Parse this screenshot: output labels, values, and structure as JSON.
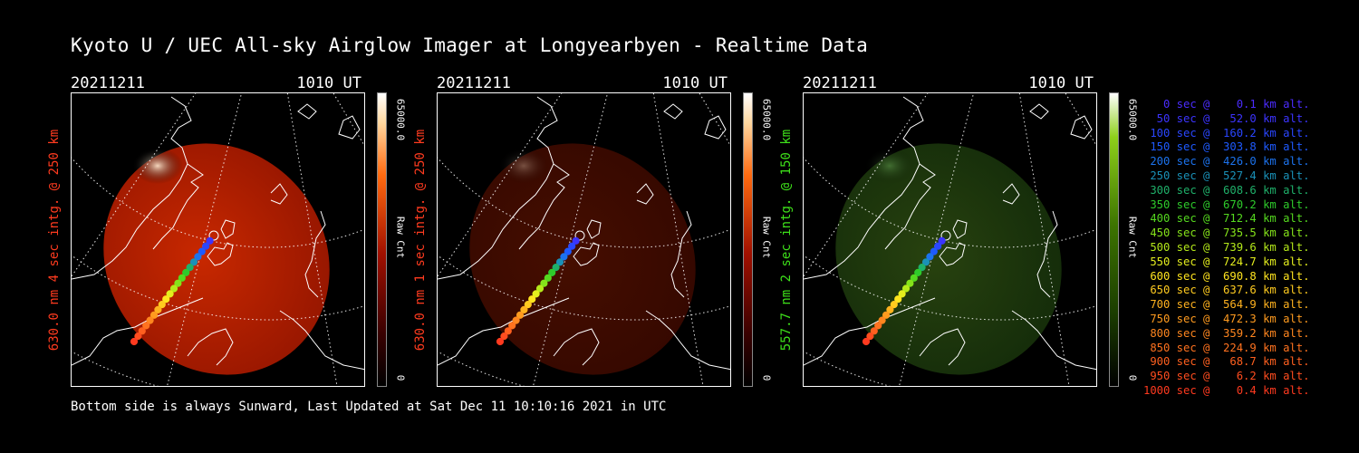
{
  "title": "Kyoto U / UEC All-sky Airglow Imager at Longyearbyen - Realtime Data",
  "footer": "Bottom side is always Sunward, Last Updated at Sat Dec 11 10:10:16 2021 in UTC",
  "panels": [
    {
      "date": "20211211",
      "time": "1010 UT",
      "side_label": "630.0 nm  4 sec intg. @ 250 km",
      "label_color": "#ff3b1f",
      "cbar_max": "65000.0",
      "cbar_label": "Raw Cnt",
      "cbar_min": "0",
      "colormap": "red",
      "image_brightness": 1.0
    },
    {
      "date": "20211211",
      "time": "1010 UT",
      "side_label": "630.0 nm  1 sec intg. @ 250 km",
      "label_color": "#ff3b1f",
      "cbar_max": "65000.0",
      "cbar_label": "Raw Cnt",
      "cbar_min": "0",
      "colormap": "red",
      "image_brightness": 0.35
    },
    {
      "date": "20211211",
      "time": "1010 UT",
      "side_label": "557.7 nm  2 sec intg. @ 150 km",
      "label_color": "#3ee01a",
      "cbar_max": "65000.0",
      "cbar_label": "Raw Cnt",
      "cbar_min": "0",
      "colormap": "green",
      "image_brightness": 0.45
    }
  ],
  "legend": [
    {
      "text": "   0 sec @    0.1 km alt.",
      "color": "#4b2cff"
    },
    {
      "text": "  50 sec @   52.0 km alt.",
      "color": "#3c34ff"
    },
    {
      "text": " 100 sec @  160.2 km alt.",
      "color": "#2a46ff"
    },
    {
      "text": " 150 sec @  303.8 km alt.",
      "color": "#1e5aff"
    },
    {
      "text": " 200 sec @  426.0 km alt.",
      "color": "#1c73ee"
    },
    {
      "text": " 250 sec @  527.4 km alt.",
      "color": "#1a91b8"
    },
    {
      "text": " 300 sec @  608.6 km alt.",
      "color": "#1fb06a"
    },
    {
      "text": " 350 sec @  670.2 km alt.",
      "color": "#2ecb2b"
    },
    {
      "text": " 400 sec @  712.4 km alt.",
      "color": "#55d91f"
    },
    {
      "text": " 450 sec @  735.5 km alt.",
      "color": "#85e31a"
    },
    {
      "text": " 500 sec @  739.6 km alt.",
      "color": "#b5ea1a"
    },
    {
      "text": " 550 sec @  724.7 km alt.",
      "color": "#e4ee1e"
    },
    {
      "text": " 600 sec @  690.8 km alt.",
      "color": "#ffe41f"
    },
    {
      "text": " 650 sec @  637.6 km alt.",
      "color": "#ffcb1f"
    },
    {
      "text": " 700 sec @  564.9 km alt.",
      "color": "#ffb21f"
    },
    {
      "text": " 750 sec @  472.3 km alt.",
      "color": "#ff9b1f"
    },
    {
      "text": " 800 sec @  359.2 km alt.",
      "color": "#ff861f"
    },
    {
      "text": " 850 sec @  224.9 km alt.",
      "color": "#ff721f"
    },
    {
      "text": " 900 sec @   68.7 km alt.",
      "color": "#ff601f"
    },
    {
      "text": " 950 sec @    6.2 km alt.",
      "color": "#ff4d1f"
    },
    {
      "text": "1000 sec @    0.4 km alt.",
      "color": "#ff3a1f"
    }
  ]
}
